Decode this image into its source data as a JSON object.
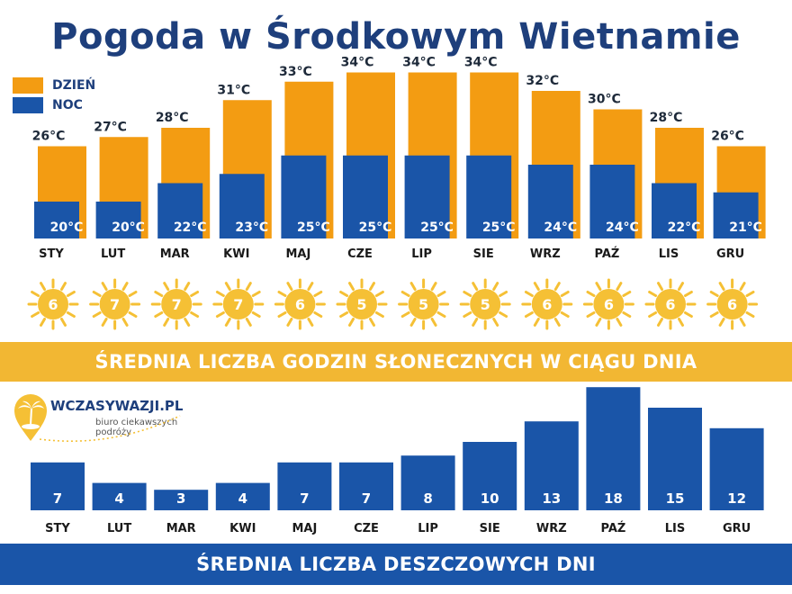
{
  "title": "Pogoda w Środkowym Wietnamie",
  "legend": {
    "day_label": "DZIEŃ",
    "night_label": "NOC"
  },
  "colors": {
    "day": "#f39c12",
    "night": "#1a55a8",
    "title": "#1e3f7c",
    "sun": "#f5c035",
    "band_sun": "#f2b733",
    "band_rain": "#1a55a8"
  },
  "bands": {
    "sunshine": "ŚREDNIA LICZBA GODZIN SŁONECZNYCH W CIĄGU DNIA",
    "rain": "ŚREDNIA LICZBA DESZCZOWYCH DNI"
  },
  "logo": {
    "name": "WCZASYWAZJI.PL",
    "tagline": "biuro ciekawszych podróży",
    "icon": "palm-tree-pin-icon"
  },
  "chart_data": [
    {
      "type": "bar",
      "categories": [
        "STY",
        "LUT",
        "MAR",
        "KWI",
        "MAJ",
        "CZE",
        "LIP",
        "SIE",
        "WRZ",
        "PAŹ",
        "LIS",
        "GRU"
      ],
      "series": [
        {
          "name": "DZIEŃ",
          "values": [
            26,
            27,
            28,
            31,
            33,
            34,
            34,
            34,
            32,
            30,
            28,
            26
          ],
          "labels": [
            "26°C",
            "27°C",
            "28°C",
            "31°C",
            "33°C",
            "34°C",
            "34°C",
            "34°C",
            "32°C",
            "30°C",
            "28°C",
            "26°C"
          ]
        },
        {
          "name": "NOC",
          "values": [
            20,
            20,
            22,
            23,
            25,
            25,
            25,
            25,
            24,
            24,
            22,
            21
          ],
          "labels": [
            "20°C",
            "20°C",
            "22°C",
            "23°C",
            "25°C",
            "25°C",
            "25°C",
            "25°C",
            "24°C",
            "24°C",
            "22°C",
            "21°C"
          ]
        }
      ],
      "unit": "°C"
    },
    {
      "type": "icon-values",
      "title": "ŚREDNIA LICZBA GODZIN SŁONECZNYCH W CIĄGU DNIA",
      "categories": [
        "STY",
        "LUT",
        "MAR",
        "KWI",
        "MAJ",
        "CZE",
        "LIP",
        "SIE",
        "WRZ",
        "PAŹ",
        "LIS",
        "GRU"
      ],
      "values": [
        6,
        7,
        7,
        7,
        6,
        5,
        5,
        5,
        6,
        6,
        6,
        6
      ],
      "icon": "sun-icon"
    },
    {
      "type": "bar",
      "title": "ŚREDNIA LICZBA DESZCZOWYCH DNI",
      "categories": [
        "STY",
        "LUT",
        "MAR",
        "KWI",
        "MAJ",
        "CZE",
        "LIP",
        "SIE",
        "WRZ",
        "PAŹ",
        "LIS",
        "GRU"
      ],
      "values": [
        7,
        4,
        3,
        4,
        7,
        7,
        8,
        10,
        13,
        18,
        15,
        12
      ]
    }
  ]
}
